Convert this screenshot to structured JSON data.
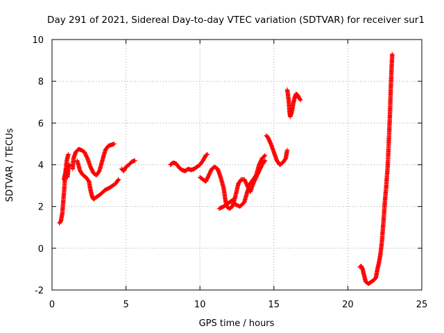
{
  "chart_data": {
    "type": "scatter",
    "title": "Day 291 of 2021, Sidereal Day-to-day VTEC variation (SDTVAR) for receiver sur1",
    "xlabel": "GPS time / hours",
    "ylabel": "SDTVAR / TECUs",
    "xlim": [
      0,
      25
    ],
    "ylim": [
      -2,
      10
    ],
    "xticks": [
      "0",
      "5",
      "10",
      "15",
      "20",
      "25"
    ],
    "yticks": [
      "-2",
      "0",
      "2",
      "4",
      "6",
      "8",
      "10"
    ],
    "grid": true,
    "marker": "+",
    "color": "#ff0000",
    "series": [
      {
        "name": "sur1",
        "segments": [
          [
            [
              0.5,
              1.2
            ],
            [
              0.6,
              1.3
            ],
            [
              0.7,
              1.7
            ],
            [
              0.8,
              2.6
            ],
            [
              0.9,
              3.6
            ],
            [
              1.0,
              4.2
            ],
            [
              1.1,
              4.5
            ]
          ],
          [
            [
              0.8,
              3.3
            ],
            [
              0.9,
              3.6
            ],
            [
              1.0,
              3.8
            ],
            [
              1.05,
              3.4
            ],
            [
              1.1,
              3.9
            ],
            [
              1.2,
              4.0
            ]
          ],
          [
            [
              1.4,
              3.8
            ],
            [
              1.45,
              4.3
            ],
            [
              1.6,
              4.6
            ],
            [
              1.8,
              4.75
            ],
            [
              2.0,
              4.7
            ],
            [
              2.2,
              4.6
            ],
            [
              2.4,
              4.3
            ],
            [
              2.6,
              3.9
            ],
            [
              2.8,
              3.6
            ],
            [
              3.0,
              3.5
            ],
            [
              3.2,
              3.7
            ],
            [
              3.4,
              4.2
            ],
            [
              3.6,
              4.7
            ],
            [
              3.8,
              4.9
            ],
            [
              4.0,
              4.95
            ],
            [
              4.2,
              5.0
            ]
          ],
          [
            [
              1.7,
              4.2
            ],
            [
              1.9,
              3.7
            ],
            [
              2.1,
              3.5
            ],
            [
              2.3,
              3.4
            ],
            [
              2.5,
              3.2
            ],
            [
              2.6,
              2.8
            ],
            [
              2.7,
              2.5
            ],
            [
              2.8,
              2.35
            ],
            [
              3.0,
              2.45
            ],
            [
              3.3,
              2.6
            ],
            [
              3.6,
              2.8
            ],
            [
              3.9,
              2.9
            ],
            [
              4.1,
              3.0
            ],
            [
              4.3,
              3.1
            ],
            [
              4.5,
              3.3
            ]
          ],
          [
            [
              4.7,
              3.8
            ],
            [
              4.85,
              3.7
            ],
            [
              5.0,
              3.9
            ],
            [
              5.2,
              4.0
            ],
            [
              5.4,
              4.15
            ],
            [
              5.6,
              4.2
            ]
          ],
          [
            [
              8.0,
              4.0
            ],
            [
              8.2,
              4.1
            ],
            [
              8.4,
              4.05
            ],
            [
              8.6,
              3.85
            ],
            [
              8.8,
              3.75
            ],
            [
              9.0,
              3.7
            ],
            [
              9.2,
              3.8
            ],
            [
              9.4,
              3.75
            ],
            [
              9.6,
              3.8
            ],
            [
              9.8,
              3.9
            ],
            [
              10.0,
              4.0
            ],
            [
              10.2,
              4.2
            ],
            [
              10.4,
              4.45
            ],
            [
              10.5,
              4.5
            ]
          ],
          [
            [
              10.0,
              3.4
            ],
            [
              10.2,
              3.3
            ],
            [
              10.4,
              3.2
            ],
            [
              10.6,
              3.5
            ],
            [
              10.8,
              3.8
            ],
            [
              11.0,
              3.9
            ],
            [
              11.2,
              3.8
            ],
            [
              11.4,
              3.4
            ],
            [
              11.6,
              2.9
            ],
            [
              11.7,
              2.4
            ],
            [
              11.8,
              2.0
            ],
            [
              12.0,
              1.9
            ],
            [
              12.2,
              2.0
            ],
            [
              12.4,
              2.5
            ],
            [
              12.6,
              3.1
            ],
            [
              12.8,
              3.3
            ],
            [
              13.0,
              3.3
            ],
            [
              13.2,
              3.0
            ],
            [
              13.4,
              2.7
            ],
            [
              13.6,
              3.1
            ],
            [
              13.8,
              3.4
            ],
            [
              14.0,
              3.7
            ],
            [
              14.2,
              4.0
            ],
            [
              14.4,
              4.2
            ]
          ],
          [
            [
              11.3,
              1.9
            ],
            [
              11.6,
              2.0
            ],
            [
              11.8,
              2.1
            ],
            [
              12.0,
              2.2
            ],
            [
              12.2,
              2.3
            ],
            [
              12.4,
              2.1
            ],
            [
              12.7,
              2.0
            ],
            [
              13.0,
              2.2
            ],
            [
              13.2,
              2.7
            ],
            [
              13.4,
              3.1
            ],
            [
              13.6,
              3.3
            ],
            [
              13.8,
              3.5
            ],
            [
              14.0,
              4.0
            ],
            [
              14.2,
              4.3
            ],
            [
              14.4,
              4.45
            ]
          ],
          [
            [
              14.5,
              5.4
            ],
            [
              14.6,
              5.3
            ],
            [
              14.8,
              5.0
            ],
            [
              15.0,
              4.6
            ],
            [
              15.2,
              4.2
            ],
            [
              15.4,
              4.0
            ],
            [
              15.6,
              4.1
            ],
            [
              15.8,
              4.3
            ],
            [
              15.9,
              4.7
            ]
          ],
          [
            [
              15.9,
              7.6
            ],
            [
              16.0,
              7.1
            ],
            [
              16.05,
              6.6
            ],
            [
              16.1,
              6.3
            ],
            [
              16.2,
              6.5
            ],
            [
              16.3,
              6.9
            ],
            [
              16.4,
              7.2
            ],
            [
              16.5,
              7.4
            ],
            [
              16.6,
              7.35
            ],
            [
              16.7,
              7.2
            ],
            [
              16.8,
              7.1
            ]
          ],
          [
            [
              20.8,
              -0.9
            ],
            [
              20.9,
              -0.85
            ],
            [
              21.0,
              -1.0
            ],
            [
              21.1,
              -1.3
            ],
            [
              21.2,
              -1.6
            ],
            [
              21.4,
              -1.7
            ],
            [
              21.6,
              -1.6
            ],
            [
              21.8,
              -1.5
            ],
            [
              21.9,
              -1.4
            ],
            [
              22.0,
              -1.0
            ],
            [
              22.1,
              -0.7
            ],
            [
              22.2,
              -0.3
            ],
            [
              22.3,
              0.3
            ],
            [
              22.4,
              1.2
            ],
            [
              22.5,
              2.2
            ],
            [
              22.6,
              3.0
            ],
            [
              22.7,
              4.0
            ],
            [
              22.8,
              5.6
            ],
            [
              22.85,
              6.5
            ],
            [
              22.9,
              7.6
            ],
            [
              22.95,
              8.5
            ],
            [
              23.0,
              9.3
            ]
          ]
        ]
      }
    ]
  }
}
